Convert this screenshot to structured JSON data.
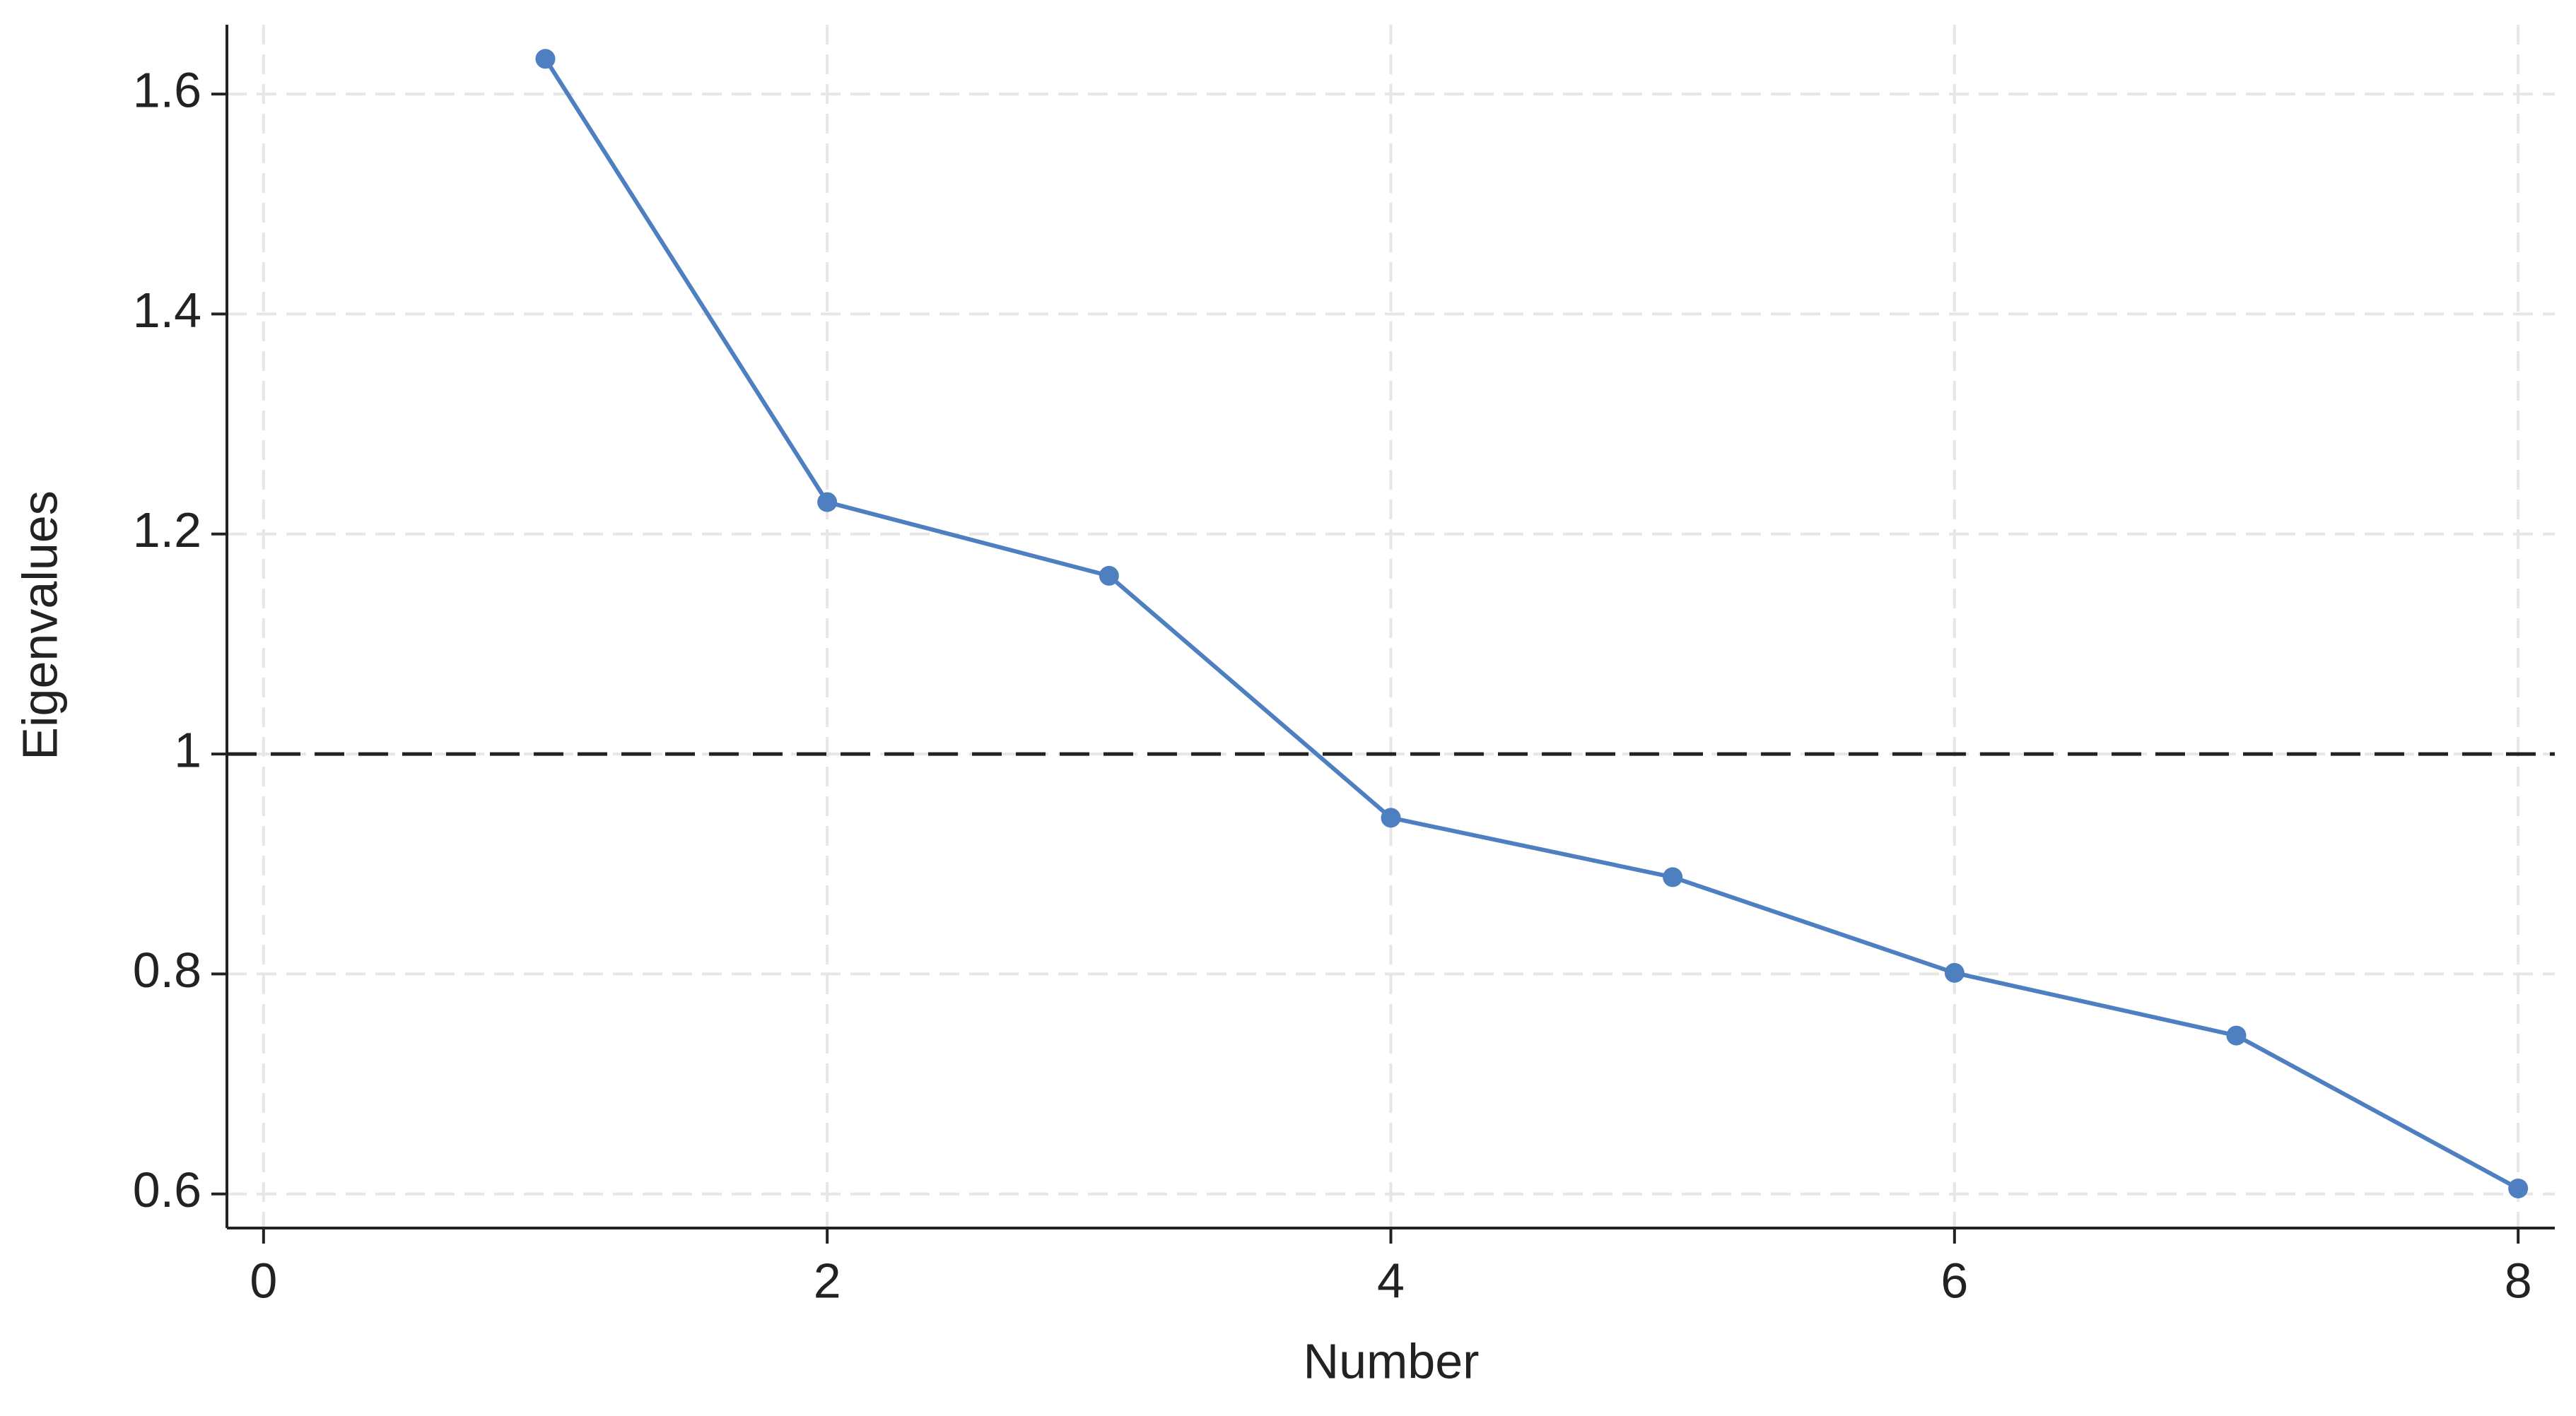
{
  "chart_data": {
    "type": "line",
    "x_label": "Number",
    "y_label": "Eigenvalues",
    "x": [
      1,
      2,
      3,
      4,
      5,
      6,
      7,
      8
    ],
    "series": [
      {
        "name": "Eigenvalues",
        "color": "#4e7fc0",
        "values": [
          1.632,
          1.229,
          1.162,
          0.942,
          0.888,
          0.801,
          0.744,
          0.605
        ]
      }
    ],
    "reference_line": 1,
    "xlim": [
      -0.13,
      8.13
    ],
    "xticks": [
      0,
      2,
      4,
      6,
      8
    ],
    "ylim": [
      0.569,
      1.663
    ],
    "yticks": [
      0.6,
      0.8,
      1,
      1.2,
      1.4,
      1.6
    ],
    "grid": true
  }
}
